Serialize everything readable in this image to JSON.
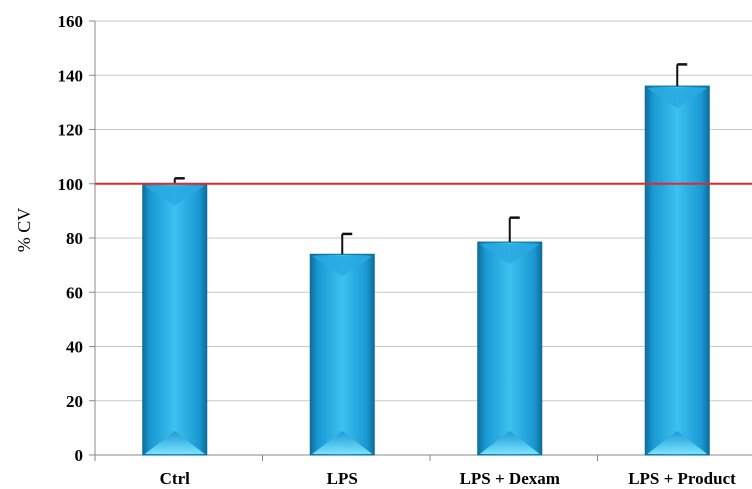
{
  "chart_data": {
    "type": "bar",
    "title": "",
    "xlabel": "",
    "ylabel": "% CV",
    "ylim": [
      0,
      160
    ],
    "yticks": [
      0,
      20,
      40,
      60,
      80,
      100,
      120,
      140,
      160
    ],
    "grid": true,
    "categories": [
      "Ctrl",
      "LPS",
      "LPS + Dexam",
      "LPS + Product"
    ],
    "values": [
      100,
      74,
      78.5,
      136
    ],
    "error": [
      2,
      7.5,
      9,
      8
    ],
    "reference_line": {
      "value": 100,
      "color": "#e8272b"
    },
    "colors": {
      "bar": "#1ea3dc",
      "bar_light": "#5fd3f7",
      "bar_dark": "#0f7fb0",
      "grid": "#c8c8c8"
    }
  }
}
